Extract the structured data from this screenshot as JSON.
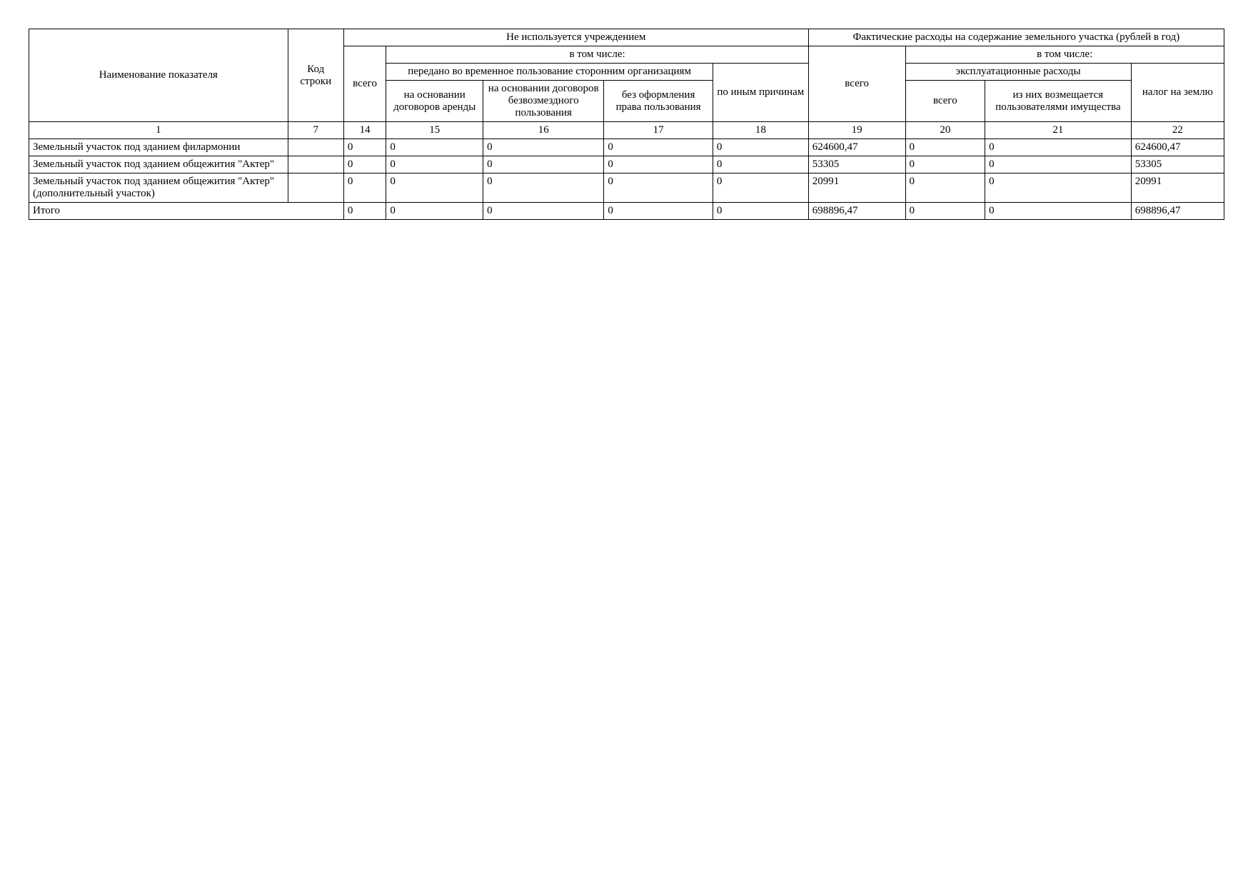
{
  "table": {
    "headers": {
      "name": "Наименование показателя",
      "code": "Код строки",
      "not_used": "Не используется учреждением",
      "expenses": "Фактические расходы на содержание земельного участка (рублей в год)",
      "total": "всего",
      "including": "в том числе:",
      "transferred": "передано во временное пользование сторонним организациям",
      "other_reasons": "по иным причинам",
      "exp_expenses": "эксплуатационные расходы",
      "land_tax": "налог на землю",
      "by_lease": "на основании договоров аренды",
      "by_free_use": "на основании договоров безвозмездного пользования",
      "no_formal": "без оформления права пользования",
      "reimbursed": "из них возмещается пользователями имущества"
    },
    "colnums": [
      "1",
      "7",
      "14",
      "15",
      "16",
      "17",
      "18",
      "19",
      "20",
      "21",
      "22"
    ],
    "rows": [
      {
        "name": "Земельный участок под зданием филармонии",
        "code": "",
        "c14": "0",
        "c15": "0",
        "c16": "0",
        "c17": "0",
        "c18": "0",
        "c19": "624600,47",
        "c20": "0",
        "c21": "0",
        "c22": "624600,47"
      },
      {
        "name": "Земельный участок под зданием общежития \"Актер\"",
        "code": "",
        "c14": "0",
        "c15": "0",
        "c16": "0",
        "c17": "0",
        "c18": "0",
        "c19": "53305",
        "c20": "0",
        "c21": "0",
        "c22": "53305"
      },
      {
        "name": "Земельный участок под зданием общежития \"Актер\" (дополнительный участок)",
        "code": "",
        "c14": "0",
        "c15": "0",
        "c16": "0",
        "c17": "0",
        "c18": "0",
        "c19": "20991",
        "c20": "0",
        "c21": "0",
        "c22": "20991"
      },
      {
        "name": "Итого",
        "code": "",
        "c14": "0",
        "c15": "0",
        "c16": "0",
        "c17": "0",
        "c18": "0",
        "c19": "698896,47",
        "c20": "0",
        "c21": "0",
        "c22": "698896,47",
        "name_colspan": 2
      }
    ]
  },
  "style": {
    "background_color": "#ffffff",
    "border_color": "#000000",
    "text_color": "#000000",
    "font_family": "Times New Roman",
    "base_font_size_pt": 11
  }
}
